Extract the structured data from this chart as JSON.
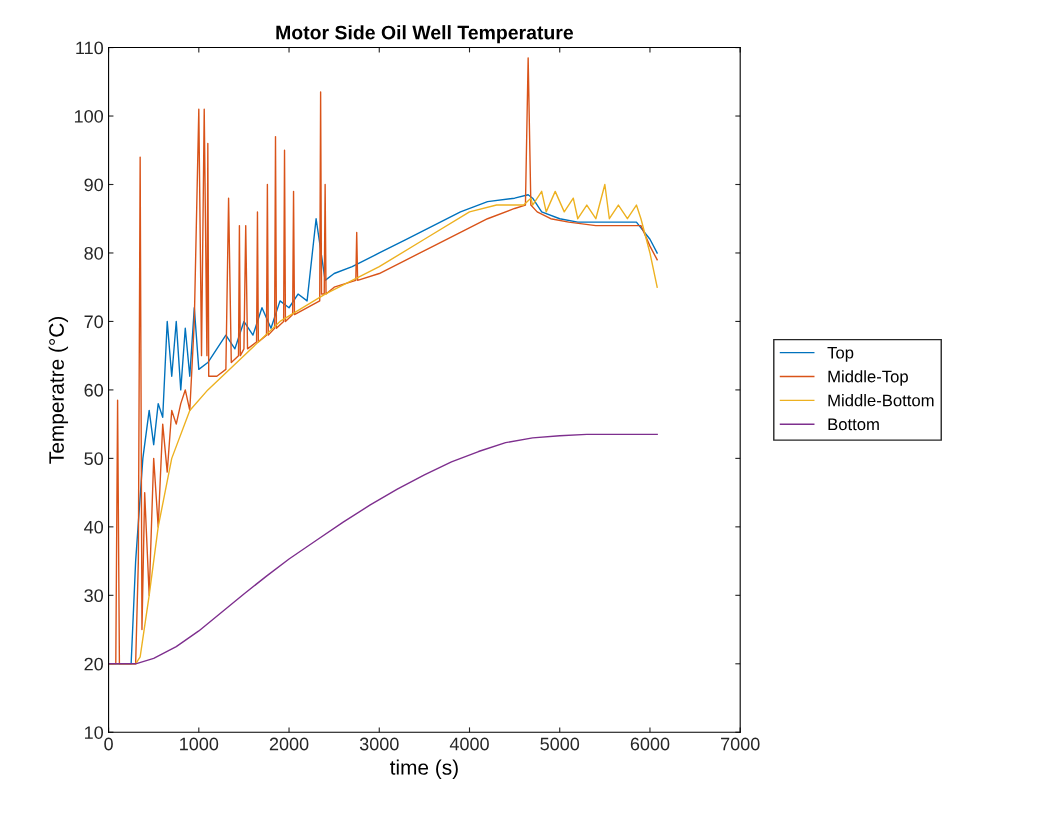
{
  "chart_data": {
    "type": "line",
    "title": "Motor Side Oil Well Temperature",
    "xlabel": "time (s)",
    "ylabel": "Temperatre (°C)",
    "xlim": [
      0,
      7000
    ],
    "xticks": [
      0,
      1000,
      2000,
      3000,
      4000,
      5000,
      6000,
      7000
    ],
    "ylim": [
      10,
      110
    ],
    "yticks": [
      10,
      20,
      30,
      40,
      50,
      60,
      70,
      80,
      90,
      100,
      110
    ],
    "grid": false,
    "legend": "right",
    "marker": "none",
    "line_style": "solid",
    "series": [
      {
        "name": "Top",
        "color": "#0072bd",
        "x": [
          0,
          250,
          300,
          380,
          450,
          500,
          550,
          600,
          650,
          700,
          750,
          800,
          850,
          900,
          950,
          1000,
          1100,
          1200,
          1300,
          1400,
          1500,
          1600,
          1700,
          1800,
          1900,
          2000,
          2100,
          2200,
          2300,
          2400,
          2500,
          2700,
          3000,
          3300,
          3600,
          3900,
          4200,
          4500,
          4650,
          4700,
          4800,
          5000,
          5200,
          5850,
          6000,
          6080
        ],
        "values": [
          20,
          20,
          35,
          50,
          57,
          52,
          58,
          56,
          70,
          62,
          70,
          60,
          69,
          62,
          72,
          63,
          64,
          66,
          68,
          66,
          70,
          68,
          72,
          69,
          73,
          72,
          74,
          73,
          85,
          76,
          77,
          78,
          80,
          82,
          84,
          86,
          87.5,
          88,
          88.5,
          88,
          86,
          85,
          84.5,
          84.5,
          82,
          80
        ]
      },
      {
        "name": "Middle-Top",
        "color": "#d95319",
        "x": [
          0,
          80,
          100,
          120,
          150,
          300,
          330,
          350,
          370,
          400,
          450,
          500,
          550,
          600,
          650,
          700,
          750,
          800,
          850,
          900,
          950,
          1000,
          1030,
          1060,
          1090,
          1100,
          1110,
          1200,
          1300,
          1330,
          1360,
          1440,
          1450,
          1460,
          1500,
          1520,
          1540,
          1640,
          1650,
          1660,
          1750,
          1760,
          1770,
          1840,
          1850,
          1860,
          1940,
          1950,
          1960,
          2040,
          2050,
          2060,
          2340,
          2350,
          2360,
          2390,
          2400,
          2410,
          2500,
          2740,
          2750,
          2760,
          3000,
          3300,
          3600,
          3900,
          4200,
          4500,
          4620,
          4650,
          4680,
          4750,
          4900,
          5100,
          5400,
          5700,
          5900,
          6000,
          6080
        ],
        "values": [
          20,
          20,
          58.5,
          20,
          20,
          20,
          35,
          94,
          25,
          45,
          30,
          50,
          40,
          55,
          48,
          57,
          55,
          58,
          60,
          57,
          70,
          101,
          65,
          101,
          65,
          96,
          62,
          62,
          63,
          88,
          64,
          65,
          84,
          65,
          66,
          84,
          66,
          67,
          86,
          67,
          68,
          90,
          68,
          69,
          97,
          69,
          70,
          95,
          70,
          71,
          89,
          71,
          73,
          103.5,
          74,
          74,
          90,
          74,
          75,
          76,
          83,
          76,
          77,
          79,
          81,
          83,
          85,
          86.5,
          87,
          108.5,
          87,
          86,
          85,
          84.5,
          84,
          84,
          84,
          81,
          79
        ]
      },
      {
        "name": "Middle-Bottom",
        "color": "#edb120",
        "x": [
          0,
          300,
          350,
          450,
          550,
          700,
          900,
          1100,
          1500,
          1900,
          2400,
          3000,
          3500,
          4000,
          4300,
          4600,
          4680,
          4700,
          4800,
          4850,
          4950,
          5050,
          5150,
          5200,
          5300,
          5400,
          5500,
          5550,
          5650,
          5750,
          5850,
          5900,
          6000,
          6080
        ],
        "values": [
          20,
          20,
          21,
          30,
          40,
          50,
          57,
          60,
          65,
          70,
          74,
          78,
          82,
          86,
          87,
          87,
          88,
          87,
          89,
          86,
          89,
          86,
          88,
          85,
          87,
          85,
          90,
          85,
          87,
          85,
          87,
          85,
          80,
          75
        ]
      },
      {
        "name": "Bottom",
        "color": "#7e2f8e",
        "x": [
          0,
          300,
          500,
          750,
          1000,
          1250,
          1500,
          1750,
          2000,
          2300,
          2600,
          2900,
          3200,
          3500,
          3800,
          4100,
          4400,
          4700,
          5000,
          5300,
          5600,
          6080
        ],
        "values": [
          20,
          20,
          20.8,
          22.5,
          24.8,
          27.5,
          30.2,
          32.8,
          35.3,
          38,
          40.7,
          43.2,
          45.5,
          47.6,
          49.5,
          51,
          52.3,
          53,
          53.3,
          53.5,
          53.5,
          53.5
        ]
      }
    ]
  }
}
